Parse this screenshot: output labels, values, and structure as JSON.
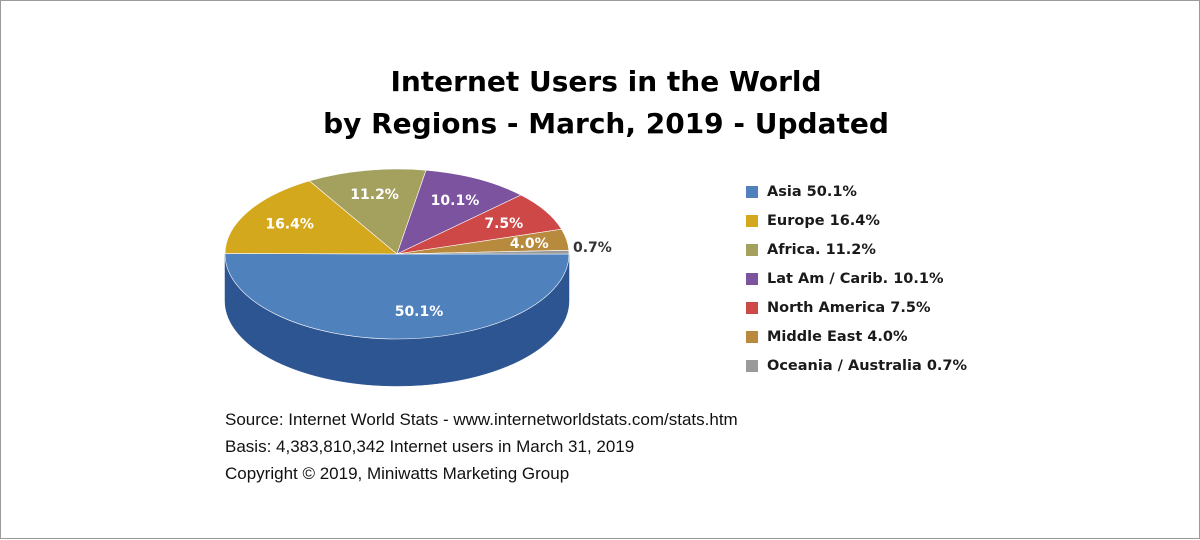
{
  "chart_data": {
    "type": "pie",
    "title": [
      "Internet Users in the World",
      "by Regions - March, 2019 - Updated"
    ],
    "slices": [
      {
        "name": "Asia",
        "value": 50.1,
        "label": "50.1%",
        "legend": "Asia  50.1%",
        "color": "#4f81bd",
        "side": "#2c5592",
        "label_color": "#ffffff"
      },
      {
        "name": "Europe",
        "value": 16.4,
        "label": "16.4%",
        "legend": "Europe  16.4%",
        "color": "#d4a81c",
        "side": "#a27f10",
        "label_color": "#ffffff"
      },
      {
        "name": "Africa.",
        "value": 11.2,
        "label": "11.2%",
        "legend": "Africa.  11.2%",
        "color": "#a4a05e",
        "side": "#7a773f",
        "label_color": "#ffffff"
      },
      {
        "name": "Lat Am / Carib.",
        "value": 10.1,
        "label": "10.1%",
        "legend": "Lat Am / Carib.  10.1%",
        "color": "#7b539e",
        "side": "#573876",
        "label_color": "#ffffff"
      },
      {
        "name": "North America",
        "value": 7.5,
        "label": "7.5%",
        "legend": "North America  7.5%",
        "color": "#cf4848",
        "side": "#9b2b2b",
        "label_color": "#ffffff"
      },
      {
        "name": "Middle East",
        "value": 4.0,
        "label": "4.0%",
        "legend": "Middle East  4.0%",
        "color": "#b88a3e",
        "side": "#8a6528",
        "label_color": "#ffffff"
      },
      {
        "name": "Oceania / Australia",
        "value": 0.7,
        "label": "0.7%",
        "legend": "Oceania / Australia  0.7%",
        "color": "#9a9a9a",
        "side": "#6e6e6e",
        "label_color": "#333333"
      }
    ],
    "legend_position": "right"
  },
  "source": {
    "line1": "Source: Internet World Stats -  www.internetworldstats.com/stats.htm",
    "line2": "Basis: 4,383,810,342 Internet users in March 31, 2019",
    "line3": "Copyright © 2019, Miniwatts Marketing Group"
  }
}
